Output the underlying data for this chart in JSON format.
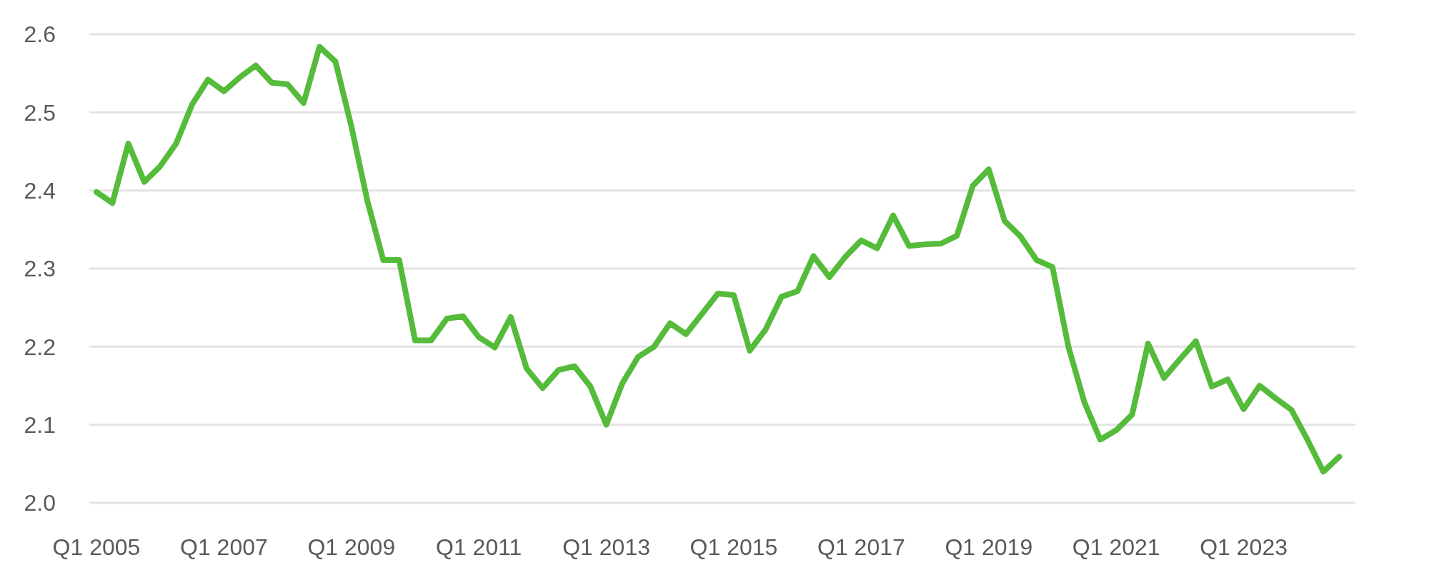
{
  "chart_data": {
    "type": "line",
    "categories": [
      "Q1 2005",
      null,
      null,
      null,
      null,
      null,
      null,
      null,
      "Q1 2007",
      null,
      null,
      null,
      null,
      null,
      null,
      null,
      "Q1 2009",
      null,
      null,
      null,
      null,
      null,
      null,
      null,
      "Q1 2011",
      null,
      null,
      null,
      null,
      null,
      null,
      null,
      "Q1 2013",
      null,
      null,
      null,
      null,
      null,
      null,
      null,
      "Q1 2015",
      null,
      null,
      null,
      null,
      null,
      null,
      null,
      "Q1 2017",
      null,
      null,
      null,
      null,
      null,
      null,
      null,
      "Q1 2019",
      null,
      null,
      null,
      null,
      null,
      null,
      null,
      "Q1 2021",
      null,
      null,
      null,
      null,
      null,
      null,
      null,
      "Q1 2023",
      null,
      null,
      null,
      null,
      null,
      null
    ],
    "series": [
      {
        "color": "#55bb3a",
        "values": [
          2.398,
          2.384,
          2.46,
          2.411,
          2.431,
          2.46,
          2.51,
          2.542,
          2.527,
          2.545,
          2.56,
          2.538,
          2.536,
          2.512,
          2.584,
          2.565,
          2.482,
          2.387,
          2.311,
          2.311,
          2.208,
          2.208,
          2.236,
          2.239,
          2.212,
          2.199,
          2.238,
          2.172,
          2.147,
          2.17,
          2.175,
          2.149,
          2.1,
          2.153,
          2.187,
          2.2,
          2.23,
          2.216,
          2.242,
          2.268,
          2.266,
          2.195,
          2.222,
          2.264,
          2.271,
          2.316,
          2.289,
          2.315,
          2.336,
          2.326,
          2.368,
          2.329,
          2.331,
          2.332,
          2.342,
          2.406,
          2.427,
          2.361,
          2.341,
          2.311,
          2.302,
          2.2,
          2.129,
          2.081,
          2.093,
          2.113,
          2.204,
          2.16,
          2.184,
          2.207,
          2.149,
          2.158,
          2.12,
          2.15,
          2.134,
          2.119,
          2.081,
          2.04,
          2.059
        ]
      }
    ],
    "ylim": [
      2.0,
      2.6
    ],
    "yticks": [
      {
        "value": 2.0,
        "label": "2.0"
      },
      2.1,
      2.2,
      2.3,
      2.4,
      2.5,
      2.6
    ],
    "grid": "y",
    "marker": "none",
    "line_style": "solid"
  }
}
